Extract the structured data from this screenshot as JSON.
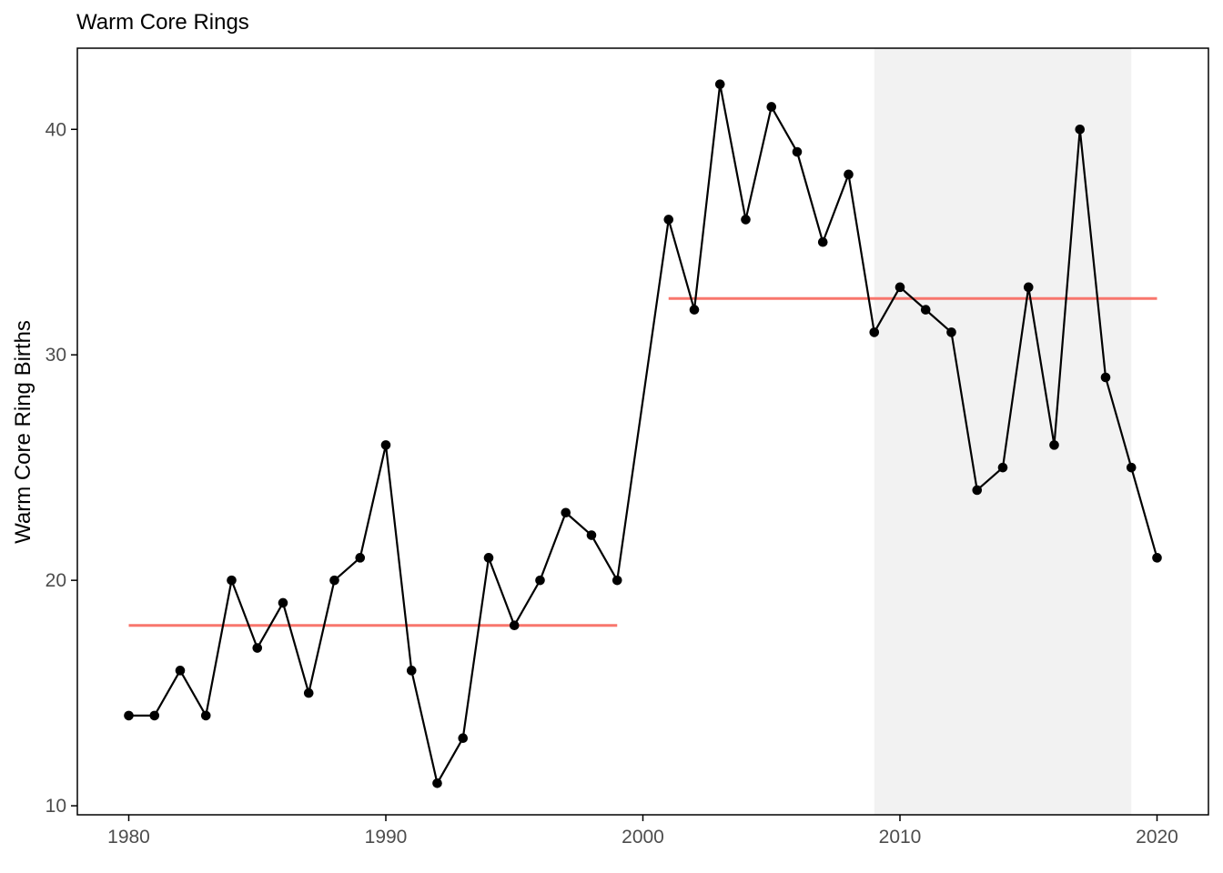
{
  "chart_data": {
    "type": "line",
    "title": "Warm Core Rings",
    "xlabel": "",
    "ylabel": "Warm Core Ring Births",
    "xlim": [
      1978,
      2022
    ],
    "ylim": [
      9.6,
      43.6
    ],
    "x_ticks": [
      1980,
      1990,
      2000,
      2010,
      2020
    ],
    "y_ticks": [
      10,
      20,
      30,
      40
    ],
    "grid": false,
    "x": [
      1980,
      1981,
      1982,
      1983,
      1984,
      1985,
      1986,
      1987,
      1988,
      1989,
      1990,
      1991,
      1992,
      1993,
      1994,
      1995,
      1996,
      1997,
      1998,
      1999,
      2001,
      2002,
      2003,
      2004,
      2005,
      2006,
      2007,
      2008,
      2009,
      2010,
      2011,
      2012,
      2013,
      2014,
      2015,
      2016,
      2017,
      2018,
      2019,
      2020
    ],
    "values": [
      14,
      14,
      16,
      14,
      20,
      17,
      19,
      15,
      20,
      21,
      26,
      16,
      11,
      13,
      21,
      18,
      20,
      23,
      22,
      20,
      36,
      32,
      42,
      36,
      41,
      39,
      35,
      38,
      31,
      33,
      32,
      31,
      24,
      25,
      33,
      26,
      40,
      29,
      25,
      21
    ],
    "mean_segments": [
      {
        "x_start": 1980,
        "x_end": 1999,
        "value": 18
      },
      {
        "x_start": 2001,
        "x_end": 2020,
        "value": 32.5
      }
    ],
    "shaded_region": {
      "x_start": 2009,
      "x_end": 2019
    },
    "colors": {
      "line": "#000000",
      "point": "#000000",
      "mean": "#f8766d",
      "shade": "#f2f2f2",
      "axis": "#000000",
      "tick_label": "#4d4d4d"
    }
  }
}
